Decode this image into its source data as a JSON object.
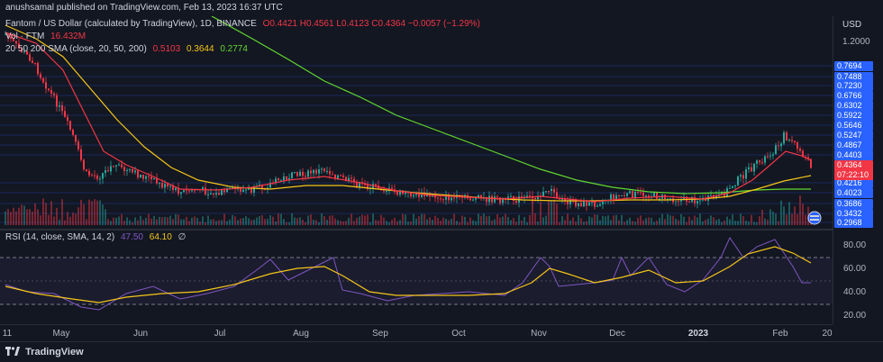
{
  "header": {
    "published": "anushsamal published on TradingView.com, Feb 13, 2023 16:37 UTC"
  },
  "legend": {
    "symbol": "Fantom / US Dollar (calculated by TradingView), 1D, BINANCE",
    "ohlc": "O0.4421 H0.4561 L0.4123 C0.4364 −0.0057 (−1.29%)",
    "vol_label": "Vol · FTM",
    "vol_value": "16.432M",
    "sma_label": "20 50 200 SMA (close, 20, 50, 200)",
    "sma20": "0.5103",
    "sma50": "0.3644",
    "sma200": "0.2774"
  },
  "price_axis": {
    "currency": "USD",
    "top_label": "1.2000",
    "levels": [
      "0.7694",
      "0.7488",
      "0.7230",
      "0.6766",
      "0.6302",
      "0.5922",
      "0.5646",
      "0.5247",
      "0.4867",
      "0.4403",
      "0.4216",
      "0.4023",
      "0.3686",
      "0.3432",
      "0.2968"
    ],
    "current_price": "0.4364",
    "countdown": "07:22:10"
  },
  "rsi": {
    "label": "RSI (14, close, SMA, 14, 2)",
    "value": "47.50",
    "sma_value": "64.10",
    "extra": "∅",
    "levels": [
      "80.00",
      "60.00",
      "40.00",
      "20.00"
    ]
  },
  "time_axis": {
    "labels": [
      "11",
      "May",
      "Jun",
      "Jul",
      "Aug",
      "Sep",
      "Oct",
      "Nov",
      "Dec",
      "2023",
      "Feb",
      "20"
    ]
  },
  "footer": {
    "brand": "TradingView"
  },
  "colors": {
    "background": "#131722",
    "up": "#26a69a",
    "down": "#f23645",
    "sma20": "#f23645",
    "sma50": "#f5c518",
    "sma200": "#62d82f",
    "rsi": "#7e57c2",
    "rsi_sma": "#f5c518",
    "level_box": "#2962ff"
  }
}
